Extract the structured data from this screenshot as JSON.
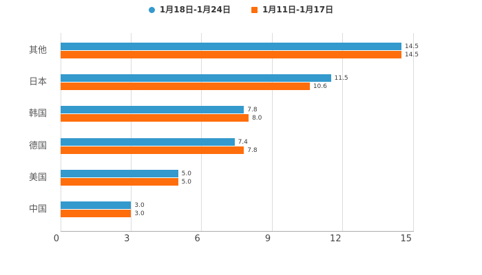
{
  "chart_data": {
    "type": "bar",
    "orientation": "horizontal",
    "title": "",
    "xlabel": "",
    "ylabel": "",
    "categories": [
      "其他",
      "日本",
      "韩国",
      "德国",
      "美国",
      "中国"
    ],
    "series": [
      {
        "name": "1月18日-1月24日",
        "color": "#3499CD",
        "marker": "circle",
        "values": [
          14.5,
          11.5,
          7.8,
          7.4,
          5.0,
          3.0
        ],
        "labels": [
          "14.5",
          "11.5",
          "7.8",
          "7.4",
          "5.0",
          "3.0"
        ]
      },
      {
        "name": "1月11日-1月17日",
        "color": "#FF6E0C",
        "marker": "square",
        "values": [
          14.5,
          10.6,
          8.0,
          7.8,
          5.0,
          3.0
        ],
        "labels": [
          "14.5",
          "10.6",
          "8.0",
          "7.8",
          "5.0",
          "3.0"
        ]
      }
    ],
    "xlim": [
      0,
      15
    ],
    "x_ticks": [
      0,
      3,
      6,
      9,
      12,
      15
    ],
    "grid": true,
    "legend_position": "top-center",
    "value_labels": true
  },
  "colors": {
    "background": "#FFFFFF",
    "gridline": "#DCDCDC",
    "axis_line": "#ABABAB",
    "tick_text": "#444444",
    "category_text": "#595959",
    "legend_text": "#333333",
    "value_label_text": "#3A3A3A"
  }
}
